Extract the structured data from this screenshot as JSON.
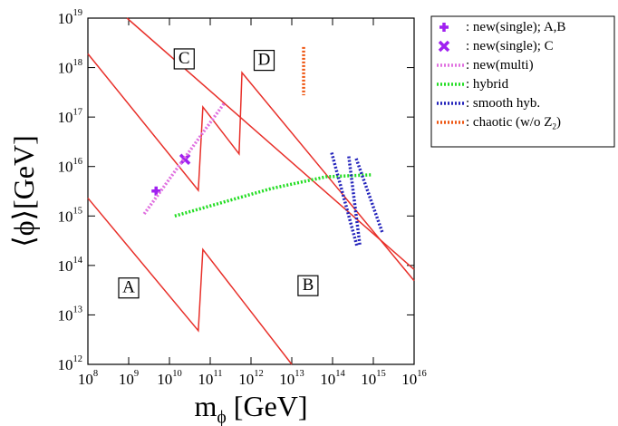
{
  "chart_data": {
    "type": "line",
    "xlabel": "m_ϕ [GeV]",
    "ylabel": "⟨ϕ⟩[GeV]",
    "xscale": "log",
    "yscale": "log",
    "xlim": [
      100000000.0,
      1e+16
    ],
    "ylim": [
      1000000000000.0,
      1e+19
    ],
    "xticks": [
      {
        "value": 100000000.0,
        "label": "10^8"
      },
      {
        "value": 1000000000.0,
        "label": "10^9"
      },
      {
        "value": 10000000000.0,
        "label": "10^10"
      },
      {
        "value": 100000000000.0,
        "label": "10^11"
      },
      {
        "value": 1000000000000.0,
        "label": "10^12"
      },
      {
        "value": 10000000000000.0,
        "label": "10^13"
      },
      {
        "value": 100000000000000.0,
        "label": "10^14"
      },
      {
        "value": 1000000000000000.0,
        "label": "10^15"
      },
      {
        "value": 1e+16,
        "label": "10^16"
      }
    ],
    "yticks": [
      {
        "value": 1000000000000.0,
        "label": "10^12"
      },
      {
        "value": 10000000000000.0,
        "label": "10^13"
      },
      {
        "value": 100000000000000.0,
        "label": "10^14"
      },
      {
        "value": 1000000000000000.0,
        "label": "10^15"
      },
      {
        "value": 1e+16,
        "label": "10^16"
      },
      {
        "value": 1e+17,
        "label": "10^17"
      },
      {
        "value": 1e+18,
        "label": "10^18"
      },
      {
        "value": 1e+19,
        "label": "10^19"
      }
    ],
    "boundaries": [
      {
        "color": "#e8302a",
        "x": [
          100000000.0,
          51000000000.0,
          66000000000.0,
          10000000000000.0
        ],
        "values": [
          2300000000000000.0,
          4800000000000.0,
          210000000000000.0,
          1000000000000.0
        ]
      },
      {
        "color": "#e8302a",
        "x": [
          100000000.0,
          51000000000.0,
          66000000000.0,
          510000000000.0,
          600000000000.0,
          1e+16
        ],
        "values": [
          1.9e+18,
          3300000000000000.0,
          1.6e+17,
          1.8e+16,
          7.9e+17,
          49000000000000.0
        ]
      },
      {
        "color": "#e8302a",
        "x": [
          910000000.0,
          1e+16
        ],
        "values": [
          1e+19,
          83000000000000.0
        ]
      }
    ],
    "series": [
      {
        "name": ": new(single); A,B",
        "color": "#a020f0",
        "marker": "plus",
        "x": [
          4700000000.0
        ],
        "values": [
          3200000000000000.0
        ]
      },
      {
        "name": ": new(single); C",
        "color": "#a020f0",
        "marker": "cross",
        "x": [
          24000000000.0
        ],
        "values": [
          1.4e+16
        ]
      },
      {
        "name": ": new(multi)",
        "color": "#e070e0",
        "dash": "dotted",
        "x": [
          2400000000.0,
          230000000000.0
        ],
        "values": [
          1100000000000000.0,
          2e+17
        ]
      },
      {
        "name": ": hybrid",
        "color": "#22dd22",
        "dash": "dotted",
        "x": [
          13500000000.0,
          3200000000000.0,
          69000000000000.0,
          910000000000000.0
        ],
        "values": [
          1000000000000000.0,
          3600000000000000.0,
          6200000000000000.0,
          6800000000000000.0
        ]
      },
      {
        "name": ": smooth hyb.",
        "color": "#2222bb",
        "dash": "dotted",
        "x": [
          95000000000000.0,
          400000000000000.0,
          null,
          250000000000000.0,
          470000000000000.0,
          null,
          380000000000000.0,
          1700000000000000.0
        ],
        "values": [
          1.9e+16,
          240000000000000.0,
          null,
          1.6e+16,
          250000000000000.0,
          null,
          1.45e+16,
          440000000000000.0
        ]
      },
      {
        "name": ": chaotic (w/o Z_2)",
        "color": "#ee5511",
        "dash": "dotted",
        "x": [
          19500000000000.0,
          19500000000000.0
        ],
        "values": [
          2.6e+18,
          2.75e+17
        ]
      }
    ],
    "annotations": [
      {
        "text": "A",
        "x": 1000000000.0,
        "y": 35000000000000.0
      },
      {
        "text": "B",
        "x": 25000000000000.0,
        "y": 39000000000000.0
      },
      {
        "text": "C",
        "x": 23000000000.0,
        "y": 1.5e+18
      },
      {
        "text": "D",
        "x": 2100000000000.0,
        "y": 1.4e+18
      }
    ],
    "legend": "outside-right"
  }
}
